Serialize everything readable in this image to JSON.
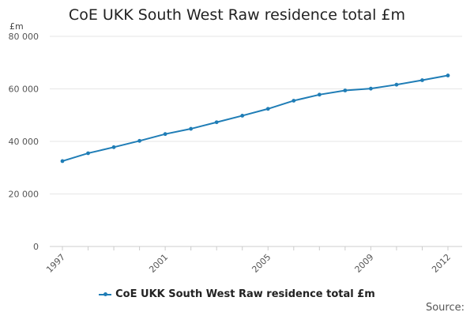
{
  "chart_data": {
    "type": "line",
    "title": "CoE UKK South West Raw residence total £m",
    "y_unit": "£m",
    "x": [
      1997,
      1998,
      1999,
      2000,
      2001,
      2002,
      2003,
      2004,
      2005,
      2006,
      2007,
      2008,
      2009,
      2010,
      2011,
      2012
    ],
    "series": [
      {
        "name": "CoE UKK South West Raw residence total £m",
        "color": "#1f7db6",
        "values": [
          32500,
          35500,
          37800,
          40200,
          42800,
          44800,
          47300,
          49800,
          52400,
          55500,
          57800,
          59400,
          60100,
          61600,
          63300,
          65100
        ]
      }
    ],
    "ylim": [
      0,
      80000
    ],
    "y_ticks": [
      0,
      20000,
      40000,
      60000,
      80000
    ],
    "y_tick_labels": [
      "0",
      "20 000",
      "40 000",
      "60 000",
      "80 000"
    ],
    "x_ticks": [
      1997,
      2001,
      2005,
      2009,
      2012
    ],
    "x_tick_labels": [
      "1997",
      "2001",
      "2005",
      "2009",
      "2012"
    ],
    "grid": "horizontal",
    "legend_position": "bottom"
  },
  "source_label": "Source:"
}
